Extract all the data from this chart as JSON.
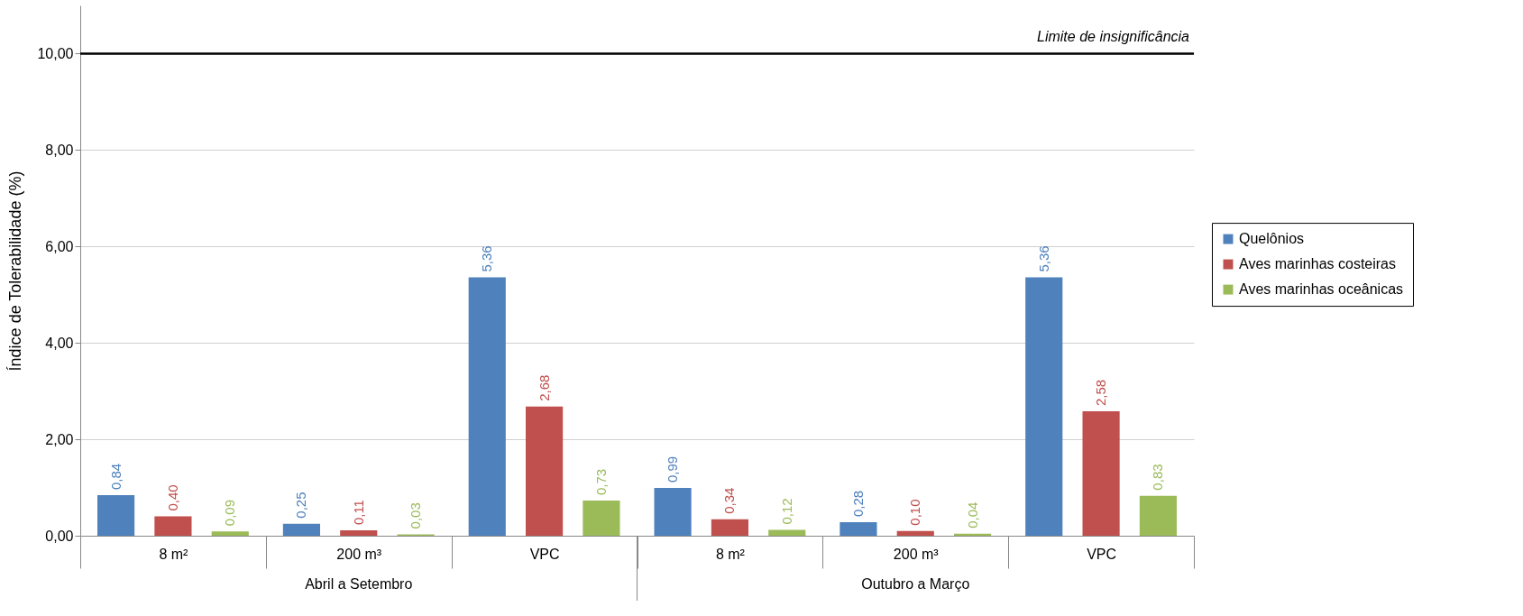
{
  "chart_data": {
    "type": "bar",
    "ylabel": "Índice de Tolerabilidade (%)",
    "categories": [
      "8 m²",
      "200 m³",
      "VPC",
      "8 m²",
      "200 m³",
      "VPC"
    ],
    "series": [
      {
        "name": "Quelônios",
        "color": "#4f81bd",
        "values": [
          0.84,
          0.25,
          5.36,
          0.99,
          0.28,
          5.36
        ],
        "value_labels": [
          "0,84",
          "0,25",
          "5,36",
          "0,99",
          "0,28",
          "5,36"
        ]
      },
      {
        "name": "Aves marinhas costeiras",
        "color": "#c0504d",
        "values": [
          0.4,
          0.11,
          2.68,
          0.34,
          0.1,
          2.58
        ],
        "value_labels": [
          "0,40",
          "0,11",
          "2,68",
          "0,34",
          "0,10",
          "2,58"
        ]
      },
      {
        "name": "Aves marinhas oceânicas",
        "color": "#9bbb59",
        "values": [
          0.09,
          0.03,
          0.73,
          0.12,
          0.04,
          0.83
        ],
        "value_labels": [
          "0,09",
          "0,03",
          "0,73",
          "0,12",
          "0,04",
          "0,83"
        ]
      }
    ],
    "ylim": [
      0,
      11
    ],
    "yticks": [
      {
        "value": 0,
        "label": "0,00"
      },
      {
        "value": 2,
        "label": "2,00"
      },
      {
        "value": 4,
        "label": "4,00"
      },
      {
        "value": 6,
        "label": "6,00"
      },
      {
        "value": 8,
        "label": "8,00"
      },
      {
        "value": 10,
        "label": "10,00"
      }
    ],
    "grid": "y",
    "legend": "right",
    "ref_lines": [
      {
        "axis": "y",
        "value": 10,
        "label": "Limite de insignificância",
        "color": "#000000"
      }
    ],
    "annotations": [
      "Abril a Setembro",
      "Outubro a Março"
    ]
  }
}
